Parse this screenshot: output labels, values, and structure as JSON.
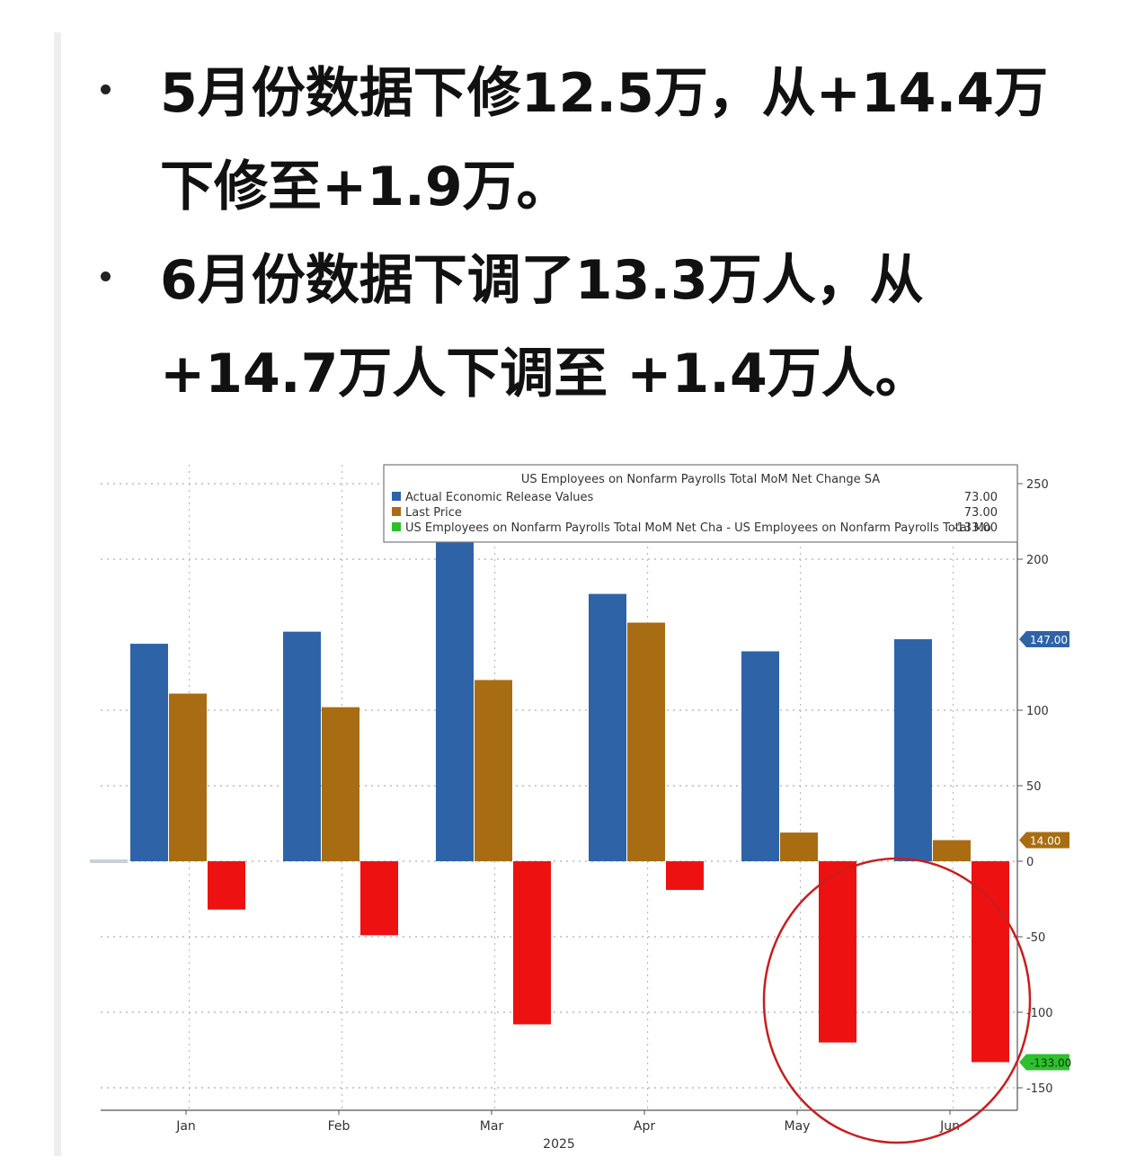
{
  "bullets": [
    "5月份数据下修12.5万，从+14.4万下修至+1.9万。",
    "6月份数据下调了13.3万人，从+14.7万人下调至 +1.4万人。"
  ],
  "chart_data": {
    "type": "bar",
    "title": "US Employees on Nonfarm Payrolls Total MoM Net Change SA",
    "categories": [
      "Jan",
      "Feb",
      "Mar",
      "Apr",
      "May",
      "Jun"
    ],
    "xlabel": "2025",
    "ylim": [
      -160,
      260
    ],
    "yticks": [
      250,
      200,
      100,
      50,
      0,
      -50,
      -100,
      -150
    ],
    "series": [
      {
        "name": "Actual Economic Release Values",
        "value_label": "73.00",
        "color": "#2e63a8",
        "values": [
          144,
          152,
          228,
          177,
          139,
          147
        ]
      },
      {
        "name": "Last Price",
        "value_label": "73.00",
        "color": "#a86d12",
        "values": [
          111,
          102,
          120,
          158,
          19,
          14
        ]
      },
      {
        "name": "US Employees on Nonfarm Payrolls Total MoM Net Cha - US Employees on Nonfarm Payrolls Total Mo",
        "value_label": "-133.00",
        "color": "#ee1111",
        "legend_color": "#2fbf2f",
        "values": [
          -32,
          -49,
          -108,
          -19,
          -120,
          -133
        ]
      }
    ],
    "right_tags": [
      {
        "text": "147.00",
        "value": 147,
        "color": "#2e63a8"
      },
      {
        "text": "14.00",
        "value": 14,
        "color": "#a86d12"
      },
      {
        "text": "-133.00",
        "value": -133,
        "color": "#2fbf2f"
      }
    ],
    "annotation": {
      "shape": "circle",
      "around": [
        "May",
        "Jun"
      ],
      "color": "#c81e1e"
    },
    "grid": true,
    "legend_placement": "top-right"
  }
}
